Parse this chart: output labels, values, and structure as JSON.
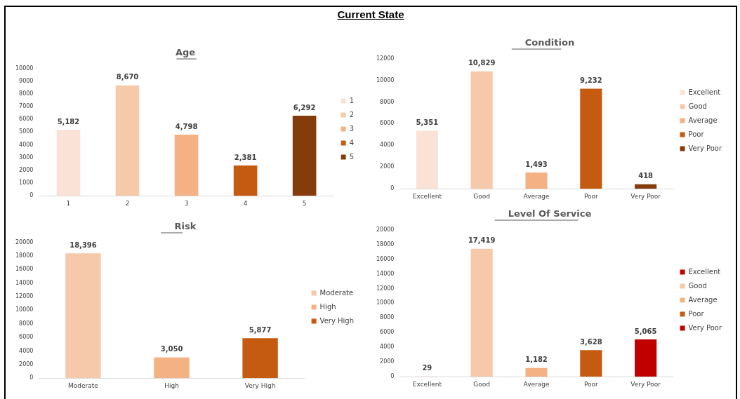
{
  "chart_data": [
    {
      "type": "other",
      "title": "Current State"
    },
    {
      "type": "bar",
      "title": "Age",
      "categories": [
        "1",
        "2",
        "3",
        "4",
        "5"
      ],
      "series": [
        {
          "name": "1",
          "color": "#fae3d6",
          "values": [
            5182,
            null,
            null,
            null,
            null
          ],
          "value_labels": [
            "5,182",
            null,
            null,
            null,
            null
          ]
        },
        {
          "name": "2",
          "color": "#f7c9ab",
          "values": [
            null,
            8670,
            null,
            null,
            null
          ],
          "value_labels": [
            null,
            "8,670",
            null,
            null,
            null
          ]
        },
        {
          "name": "3",
          "color": "#f4b183",
          "values": [
            null,
            null,
            4798,
            null,
            null
          ],
          "value_labels": [
            null,
            null,
            "4,798",
            null,
            null
          ]
        },
        {
          "name": "4",
          "color": "#c55a11",
          "values": [
            null,
            null,
            null,
            2381,
            null
          ],
          "value_labels": [
            null,
            null,
            null,
            "2,381",
            null
          ]
        },
        {
          "name": "5",
          "color": "#843c0c",
          "values": [
            null,
            null,
            null,
            null,
            6292
          ],
          "value_labels": [
            null,
            null,
            null,
            null,
            "6,292"
          ]
        }
      ],
      "ylim": [
        0,
        10000
      ],
      "yticks": [
        0,
        1000,
        2000,
        3000,
        4000,
        5000,
        6000,
        7000,
        8000,
        9000,
        10000
      ],
      "grid": false,
      "legend": "right"
    },
    {
      "type": "bar",
      "title": "Condition",
      "categories": [
        "Excellent",
        "Good",
        "Average",
        "Poor",
        "Very Poor"
      ],
      "series": [
        {
          "name": "Excellent",
          "color": "#fae3d6",
          "values": [
            5351,
            null,
            null,
            null,
            null
          ],
          "value_labels": [
            "5,351",
            null,
            null,
            null,
            null
          ]
        },
        {
          "name": "Good",
          "color": "#f7c9ab",
          "values": [
            null,
            10829,
            null,
            null,
            null
          ],
          "value_labels": [
            null,
            "10,829",
            null,
            null,
            null
          ]
        },
        {
          "name": "Average",
          "color": "#f4b183",
          "values": [
            null,
            null,
            1493,
            null,
            null
          ],
          "value_labels": [
            null,
            null,
            "1,493",
            null,
            null
          ]
        },
        {
          "name": "Poor",
          "color": "#c55a11",
          "values": [
            null,
            null,
            null,
            9232,
            null
          ],
          "value_labels": [
            null,
            null,
            null,
            "9,232",
            null
          ]
        },
        {
          "name": "Very Poor",
          "color": "#843c0c",
          "values": [
            null,
            null,
            null,
            null,
            418
          ],
          "value_labels": [
            null,
            null,
            null,
            null,
            "418"
          ]
        }
      ],
      "ylim": [
        0,
        12000
      ],
      "yticks": [
        0,
        2000,
        4000,
        6000,
        8000,
        10000,
        12000
      ],
      "grid": false,
      "legend": "right"
    },
    {
      "type": "bar",
      "title": "Risk",
      "categories": [
        "Moderate",
        "High",
        "Very High"
      ],
      "series": [
        {
          "name": "Moderate",
          "color": "#f7c9ab",
          "values": [
            18396,
            null,
            null
          ],
          "value_labels": [
            "18,396",
            null,
            null
          ]
        },
        {
          "name": "High",
          "color": "#f4b183",
          "values": [
            null,
            3050,
            null
          ],
          "value_labels": [
            null,
            "3,050",
            null
          ]
        },
        {
          "name": "Very High",
          "color": "#c55a11",
          "values": [
            null,
            null,
            5877
          ],
          "value_labels": [
            null,
            null,
            "5,877"
          ]
        }
      ],
      "ylim": [
        0,
        20000
      ],
      "yticks": [
        0,
        2000,
        4000,
        6000,
        8000,
        10000,
        12000,
        14000,
        16000,
        18000,
        20000
      ],
      "grid": false,
      "legend": "right"
    },
    {
      "type": "bar",
      "title": "Level Of Service",
      "categories": [
        "Excellent",
        "Good",
        "Average",
        "Poor",
        "Very Poor"
      ],
      "series": [
        {
          "name": "Excellent",
          "color": "#c00000",
          "values": [
            29,
            null,
            null,
            null,
            null
          ],
          "value_labels": [
            "29",
            null,
            null,
            null,
            null
          ]
        },
        {
          "name": "Good",
          "color": "#f7c9ab",
          "values": [
            null,
            17419,
            null,
            null,
            null
          ],
          "value_labels": [
            null,
            "17,419",
            null,
            null,
            null
          ]
        },
        {
          "name": "Average",
          "color": "#f4b183",
          "values": [
            null,
            null,
            1182,
            null,
            null
          ],
          "value_labels": [
            null,
            null,
            "1,182",
            null,
            null
          ]
        },
        {
          "name": "Poor",
          "color": "#c55a11",
          "values": [
            null,
            null,
            null,
            3628,
            null
          ],
          "value_labels": [
            null,
            null,
            null,
            "3,628",
            null
          ]
        },
        {
          "name": "Very Poor",
          "color": "#c00000",
          "values": [
            null,
            null,
            null,
            null,
            5065
          ],
          "value_labels": [
            null,
            null,
            null,
            null,
            "5,065"
          ]
        }
      ],
      "ylim": [
        0,
        20000
      ],
      "yticks": [
        0,
        2000,
        4000,
        6000,
        8000,
        10000,
        12000,
        14000,
        16000,
        18000,
        20000
      ],
      "grid": false,
      "legend": "right"
    }
  ]
}
